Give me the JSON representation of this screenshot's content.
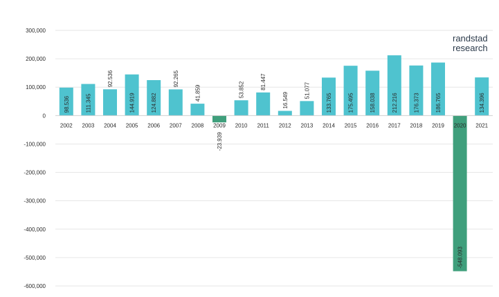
{
  "brand": {
    "line1": "randstad",
    "line2": "research"
  },
  "chart_data": {
    "type": "bar",
    "title": "",
    "xlabel": "",
    "ylabel": "",
    "ylim": [
      -600000,
      300000
    ],
    "yticks": [
      300000,
      200000,
      100000,
      0,
      -100000,
      -200000,
      -300000,
      -400000,
      -500000,
      -600000
    ],
    "ytick_labels": [
      "300,000",
      "200,000",
      "100,000",
      "0",
      "-100,000",
      "-200,000",
      "-300,000",
      "-400,000",
      "-500,000",
      "-600,000"
    ],
    "grid": true,
    "legend": "none",
    "colors": {
      "positive": "#4fc3cf",
      "negative": "#3f9f7c",
      "grid": "#e6e6e6",
      "text": "#2b2b2b"
    },
    "categories": [
      "2002",
      "2003",
      "2004",
      "2005",
      "2006",
      "2007",
      "2008",
      "2009",
      "2010",
      "2011",
      "2012",
      "2013",
      "2014",
      "2015",
      "2016",
      "2017",
      "2018",
      "2019",
      "2020",
      "2021"
    ],
    "values": [
      98536,
      111345,
      92536,
      144919,
      124882,
      92265,
      41859,
      -23939,
      53852,
      81447,
      16549,
      51077,
      133765,
      175495,
      158038,
      212216,
      176373,
      186765,
      -548093,
      134396
    ],
    "value_labels": [
      "98.536",
      "111.345",
      "92.536",
      "144.919",
      "124.882",
      "92.265",
      "41.859",
      "-23.939",
      "53.852",
      "81.447",
      "16.549",
      "51.077",
      "133.765",
      "175.495",
      "158.038",
      "212.216",
      "176.373",
      "186.765",
      "-548.093",
      "134.396"
    ]
  }
}
